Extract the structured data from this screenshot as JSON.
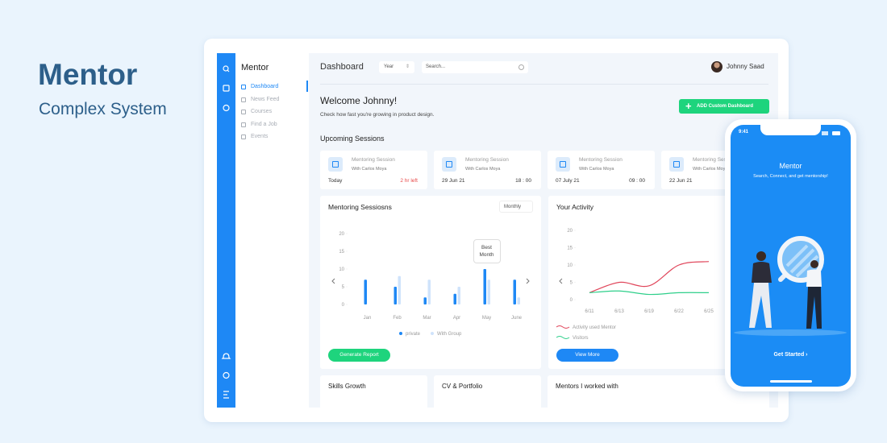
{
  "brand": {
    "title": "Mentor",
    "subtitle": "Complex System"
  },
  "sidebar": {
    "title": "Mentor",
    "items": [
      "Dashboard",
      "News Feed",
      "Courses",
      "Find a Job",
      "Events"
    ],
    "active": 0
  },
  "header": {
    "title": "Dashboard",
    "filter": "Year",
    "search": "Search...",
    "user": "Johnny Saad"
  },
  "welcome": {
    "title": "Welcome Johnny!",
    "subtitle": "Check how fast you're growing in product design.",
    "button": "ADD Custom Dashboard"
  },
  "upcoming": {
    "title": "Upcoming Sessions",
    "cards": [
      {
        "title": "Mentoring Session",
        "mentor": "With Carlos Moya",
        "date": "Today",
        "time": "2 hr left"
      },
      {
        "title": "Mentoring Session",
        "mentor": "With Carlos Moya",
        "date": "29 Jun 21",
        "time": "18 : 00"
      },
      {
        "title": "Mentoring Session",
        "mentor": "With Carlos Moya",
        "date": "07 July 21",
        "time": "09 : 00"
      },
      {
        "title": "Mentoring Session",
        "mentor": "With Carlos Moya",
        "date": "22 Jun 21"
      }
    ]
  },
  "chart_data": [
    {
      "type": "bar",
      "title": "Mentoring Sessiosns",
      "filter": "Monthly",
      "categories": [
        "Jan",
        "Feb",
        "Mar",
        "Apr",
        "May",
        "June"
      ],
      "series": [
        {
          "name": "private",
          "color": "#1e88f5",
          "values": [
            7,
            5,
            2,
            3,
            10,
            7
          ]
        },
        {
          "name": "With Group",
          "color": "#cfe3fb",
          "values": [
            0,
            8,
            7,
            5,
            7,
            2
          ]
        }
      ],
      "ylim": [
        0,
        20
      ],
      "yticks": [
        0,
        5,
        10,
        15,
        20
      ],
      "annotation": "Best Month",
      "button": "Generate Report"
    },
    {
      "type": "line",
      "title": "Your Activity",
      "categories": [
        "6/11",
        "6/13",
        "6/19",
        "6/22",
        "6/25"
      ],
      "series": [
        {
          "name": "Activity used Mentor",
          "color": "#e0455a",
          "values": [
            2,
            5,
            4,
            10,
            11
          ]
        },
        {
          "name": "Visitors",
          "color": "#2ecf8a",
          "values": [
            2,
            2.5,
            1.5,
            2,
            2
          ]
        }
      ],
      "ylim": [
        0,
        20
      ],
      "yticks": [
        0,
        5,
        10,
        15,
        20
      ],
      "button": "View More"
    }
  ],
  "bottom_cards": [
    "Skills Growth",
    "CV & Portfolio",
    "Mentors I worked with"
  ],
  "phone": {
    "time": "9:41",
    "title": "Mentor",
    "tagline": "Search, Connect, and get mentorship!",
    "button": "Get Started ›"
  }
}
